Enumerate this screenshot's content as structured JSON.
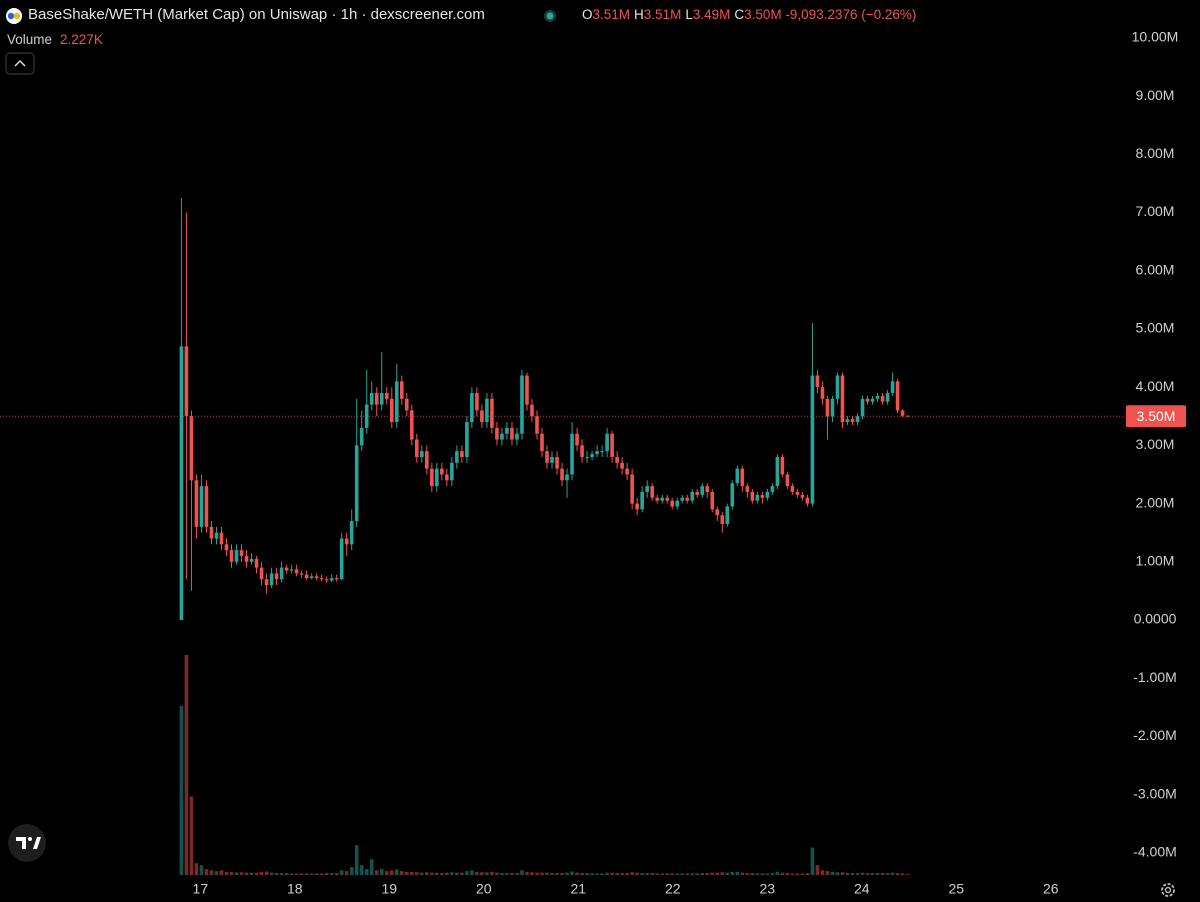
{
  "chart_data": {
    "type": "candlestick",
    "title": "BaseShake/WETH (Market Cap) on Uniswap · 1h · dexscreener.com",
    "ohlc_legend": [
      {
        "key": "O",
        "label": "3.51M"
      },
      {
        "key": "H",
        "label": "3.51M"
      },
      {
        "key": "L",
        "label": "3.49M"
      },
      {
        "key": "C",
        "label": "3.50M"
      }
    ],
    "change": "-9,093.2376 (−0.26%)",
    "up_color": "#26a69a",
    "down_color": "#ef5350",
    "xlim": [
      14.88,
      26.68
    ],
    "xticks": [
      17,
      18,
      19,
      20,
      21,
      22,
      23,
      24,
      25,
      26
    ],
    "ylim": [
      -4.38,
      10.65
    ],
    "yticks": [
      {
        "value": 10,
        "label": "10.00M"
      },
      {
        "value": 9,
        "label": "9.00M"
      },
      {
        "value": 8,
        "label": "8.00M"
      },
      {
        "value": 7,
        "label": "7.00M"
      },
      {
        "value": 6,
        "label": "6.00M"
      },
      {
        "value": 5,
        "label": "5.00M"
      },
      {
        "value": 4,
        "label": "4.00M"
      },
      {
        "value": 3,
        "label": "3.00M"
      },
      {
        "value": 2,
        "label": "2.00M"
      },
      {
        "value": 1,
        "label": "1.00M"
      },
      {
        "value": 0,
        "label": "0.0000"
      },
      {
        "value": -1,
        "label": "-1.00M"
      },
      {
        "value": -2,
        "label": "-2.00M"
      },
      {
        "value": -3,
        "label": "-3.00M"
      },
      {
        "value": -4,
        "label": "-4.00M"
      }
    ],
    "last_price": {
      "value": 3.5,
      "label": "3.50M"
    },
    "x": [
      16.8,
      16.853,
      16.906,
      16.959,
      17.012,
      17.065,
      17.118,
      17.171,
      17.224,
      17.277,
      17.33,
      17.383,
      17.436,
      17.489,
      17.542,
      17.595,
      17.648,
      17.701,
      17.754,
      17.807,
      17.86,
      17.913,
      17.966,
      18.019,
      18.072,
      18.125,
      18.178,
      18.231,
      18.284,
      18.337,
      18.39,
      18.443,
      18.496,
      18.549,
      18.602,
      18.655,
      18.708,
      18.761,
      18.814,
      18.867,
      18.92,
      18.973,
      19.026,
      19.079,
      19.132,
      19.185,
      19.238,
      19.291,
      19.344,
      19.397,
      19.45,
      19.503,
      19.556,
      19.609,
      19.662,
      19.715,
      19.768,
      19.821,
      19.874,
      19.927,
      19.98,
      20.033,
      20.086,
      20.139,
      20.192,
      20.245,
      20.298,
      20.351,
      20.404,
      20.457,
      20.51,
      20.563,
      20.616,
      20.669,
      20.722,
      20.775,
      20.828,
      20.881,
      20.934,
      20.987,
      21.04,
      21.093,
      21.146,
      21.199,
      21.252,
      21.305,
      21.358,
      21.411,
      21.464,
      21.517,
      21.57,
      21.623,
      21.676,
      21.729,
      21.782,
      21.835,
      21.888,
      21.941,
      21.994,
      22.047,
      22.1,
      22.153,
      22.206,
      22.259,
      22.312,
      22.365,
      22.418,
      22.471,
      22.524,
      22.577,
      22.63,
      22.683,
      22.736,
      22.789,
      22.842,
      22.895,
      22.948,
      23.001,
      23.054,
      23.107,
      23.16,
      23.213,
      23.266,
      23.319,
      23.372,
      23.425,
      23.478,
      23.531,
      23.584,
      23.637,
      23.69,
      23.743,
      23.796,
      23.849,
      23.902,
      23.955,
      24.008,
      24.061,
      24.114,
      24.167,
      24.22,
      24.273,
      24.326,
      24.379,
      24.432,
      24.485
    ],
    "open": [
      0,
      4.7,
      3.5,
      2.4,
      1.6,
      2.3,
      1.6,
      1.4,
      1.5,
      1.3,
      1.2,
      1.0,
      1.2,
      1.1,
      1.0,
      1.05,
      0.9,
      0.7,
      0.6,
      0.8,
      0.7,
      0.9,
      0.85,
      0.87,
      0.8,
      0.78,
      0.72,
      0.75,
      0.72,
      0.7,
      0.68,
      0.72,
      0.7,
      1.4,
      1.3,
      1.7,
      3.0,
      3.3,
      3.7,
      3.9,
      3.7,
      3.9,
      3.8,
      3.4,
      4.1,
      3.8,
      3.6,
      3.1,
      2.8,
      2.9,
      2.6,
      2.3,
      2.6,
      2.5,
      2.4,
      2.7,
      2.9,
      2.8,
      3.4,
      3.9,
      3.6,
      3.4,
      3.8,
      3.3,
      3.1,
      3.2,
      3.3,
      3.1,
      3.2,
      4.2,
      3.7,
      3.5,
      3.2,
      2.9,
      2.7,
      2.8,
      2.6,
      2.4,
      2.5,
      3.2,
      3.0,
      2.8,
      2.8,
      2.85,
      2.9,
      2.9,
      3.2,
      2.8,
      2.7,
      2.6,
      2.5,
      2.0,
      1.9,
      2.2,
      2.3,
      2.1,
      2.05,
      2.1,
      2.05,
      1.95,
      2.05,
      2.1,
      2.05,
      2.2,
      2.15,
      2.3,
      2.2,
      1.9,
      1.8,
      1.65,
      1.95,
      2.35,
      2.6,
      2.3,
      2.2,
      2.05,
      2.15,
      2.1,
      2.2,
      2.3,
      2.8,
      2.5,
      2.3,
      2.2,
      2.15,
      2.1,
      2.0,
      4.2,
      4.0,
      3.8,
      3.5,
      3.8,
      4.2,
      3.4,
      3.45,
      3.4,
      3.5,
      3.8,
      3.75,
      3.8,
      3.85,
      3.75,
      3.9,
      4.1,
      3.6,
      3.51
    ],
    "high": [
      7.25,
      7.0,
      3.6,
      2.5,
      2.5,
      2.4,
      1.7,
      1.6,
      1.6,
      1.4,
      1.3,
      1.3,
      1.3,
      1.2,
      1.15,
      1.1,
      1.0,
      0.8,
      0.9,
      0.9,
      1.0,
      0.95,
      0.95,
      0.95,
      0.85,
      0.85,
      0.8,
      0.8,
      0.78,
      0.75,
      0.78,
      0.78,
      1.5,
      1.5,
      1.9,
      3.8,
      3.6,
      4.3,
      4.1,
      4.0,
      4.6,
      4.0,
      4.0,
      4.4,
      4.2,
      3.9,
      3.7,
      3.2,
      3.0,
      3.0,
      2.7,
      2.7,
      2.7,
      2.6,
      2.8,
      3.0,
      3.0,
      3.5,
      4.0,
      4.0,
      3.7,
      3.9,
      3.9,
      3.4,
      3.3,
      3.4,
      3.4,
      3.3,
      4.3,
      4.25,
      3.8,
      3.6,
      3.3,
      3.0,
      2.9,
      2.9,
      2.7,
      2.6,
      3.4,
      3.3,
      3.1,
      2.9,
      2.9,
      3.0,
      3.0,
      3.3,
      3.25,
      2.9,
      2.8,
      2.7,
      2.6,
      2.1,
      2.3,
      2.4,
      2.35,
      2.15,
      2.15,
      2.15,
      2.1,
      2.1,
      2.15,
      2.15,
      2.25,
      2.25,
      2.35,
      2.35,
      2.25,
      1.95,
      1.85,
      2.0,
      2.4,
      2.65,
      2.65,
      2.35,
      2.25,
      2.2,
      2.2,
      2.25,
      2.35,
      2.85,
      2.85,
      2.55,
      2.35,
      2.25,
      2.2,
      2.15,
      5.1,
      4.3,
      4.1,
      3.85,
      3.85,
      4.25,
      4.25,
      3.5,
      3.5,
      3.55,
      3.85,
      3.85,
      3.85,
      3.9,
      3.9,
      3.95,
      4.25,
      4.15,
      3.62,
      3.51
    ],
    "low": [
      0,
      0.7,
      0.5,
      1.4,
      1.5,
      1.5,
      1.3,
      1.3,
      1.2,
      1.1,
      0.9,
      0.95,
      1.0,
      0.9,
      0.95,
      0.8,
      0.6,
      0.45,
      0.55,
      0.6,
      0.65,
      0.8,
      0.8,
      0.75,
      0.72,
      0.68,
      0.7,
      0.68,
      0.66,
      0.64,
      0.65,
      0.66,
      0.68,
      1.1,
      1.2,
      1.6,
      2.9,
      3.2,
      3.6,
      3.5,
      3.6,
      3.7,
      3.3,
      3.3,
      3.7,
      3.5,
      3.0,
      2.7,
      2.7,
      2.5,
      2.2,
      2.2,
      2.4,
      2.3,
      2.3,
      2.6,
      2.7,
      2.7,
      3.3,
      3.5,
      3.3,
      3.3,
      3.2,
      3.0,
      3.0,
      3.1,
      3.0,
      3.0,
      3.1,
      3.6,
      3.4,
      3.1,
      2.8,
      2.6,
      2.6,
      2.5,
      2.3,
      2.1,
      2.4,
      2.9,
      2.7,
      2.7,
      2.75,
      2.8,
      2.8,
      2.8,
      2.7,
      2.6,
      2.5,
      2.4,
      1.9,
      1.8,
      1.85,
      2.1,
      2.05,
      2.0,
      2.0,
      2.0,
      1.9,
      1.9,
      2.0,
      2.0,
      2.0,
      2.1,
      2.1,
      2.1,
      1.85,
      1.7,
      1.5,
      1.6,
      1.9,
      2.3,
      2.2,
      2.1,
      2.0,
      2.0,
      2.0,
      2.05,
      2.15,
      2.25,
      2.45,
      2.25,
      2.15,
      2.1,
      2.05,
      1.95,
      1.95,
      3.9,
      3.7,
      3.1,
      3.4,
      3.7,
      3.3,
      3.35,
      3.35,
      3.35,
      3.45,
      3.7,
      3.7,
      3.75,
      3.7,
      3.7,
      3.85,
      3.55,
      3.49,
      3.49
    ],
    "close": [
      4.7,
      3.5,
      2.4,
      1.6,
      2.3,
      1.6,
      1.4,
      1.5,
      1.3,
      1.2,
      1.0,
      1.2,
      1.1,
      1.0,
      1.05,
      0.9,
      0.7,
      0.6,
      0.8,
      0.7,
      0.9,
      0.85,
      0.87,
      0.8,
      0.78,
      0.72,
      0.75,
      0.72,
      0.7,
      0.68,
      0.72,
      0.7,
      1.4,
      1.3,
      1.7,
      3.0,
      3.3,
      3.7,
      3.9,
      3.7,
      3.9,
      3.8,
      3.4,
      4.1,
      3.8,
      3.6,
      3.1,
      2.8,
      2.9,
      2.6,
      2.3,
      2.6,
      2.5,
      2.4,
      2.7,
      2.9,
      2.8,
      3.4,
      3.9,
      3.6,
      3.4,
      3.8,
      3.3,
      3.1,
      3.2,
      3.3,
      3.1,
      3.2,
      4.2,
      3.7,
      3.5,
      3.2,
      2.9,
      2.7,
      2.8,
      2.6,
      2.4,
      2.5,
      3.2,
      3.0,
      2.8,
      2.8,
      2.85,
      2.9,
      2.9,
      3.2,
      2.8,
      2.7,
      2.6,
      2.5,
      2.0,
      1.9,
      2.2,
      2.3,
      2.1,
      2.05,
      2.1,
      2.05,
      1.95,
      2.05,
      2.1,
      2.05,
      2.2,
      2.15,
      2.3,
      2.2,
      1.9,
      1.8,
      1.65,
      1.95,
      2.35,
      2.6,
      2.3,
      2.2,
      2.05,
      2.15,
      2.1,
      2.2,
      2.3,
      2.8,
      2.5,
      2.3,
      2.2,
      2.15,
      2.1,
      2.0,
      4.2,
      4.0,
      3.8,
      3.5,
      3.8,
      4.2,
      3.4,
      3.45,
      3.4,
      3.5,
      3.8,
      3.75,
      3.8,
      3.85,
      3.75,
      3.9,
      4.1,
      3.6,
      3.51,
      3.5
    ],
    "volume": {
      "name": "Volume",
      "ylim": [
        0,
        560
      ],
      "last_value_label": "2.227K",
      "values": [
        430,
        560,
        200,
        30,
        25,
        15,
        12,
        10,
        12,
        8,
        8,
        7,
        7,
        6,
        6,
        6,
        8,
        9,
        6,
        5,
        5,
        5,
        4,
        4,
        4,
        4,
        4,
        4,
        4,
        5,
        5,
        5,
        12,
        10,
        20,
        76,
        25,
        15,
        40,
        12,
        15,
        10,
        12,
        14,
        10,
        8,
        8,
        7,
        6,
        7,
        6,
        6,
        5,
        6,
        7,
        6,
        6,
        10,
        12,
        8,
        7,
        7,
        8,
        6,
        5,
        5,
        5,
        5,
        12,
        8,
        7,
        6,
        6,
        6,
        5,
        5,
        5,
        6,
        9,
        6,
        5,
        5,
        4,
        4,
        4,
        6,
        6,
        5,
        5,
        5,
        7,
        6,
        5,
        5,
        5,
        4,
        4,
        4,
        4,
        4,
        4,
        4,
        4,
        4,
        5,
        5,
        6,
        6,
        7,
        6,
        8,
        8,
        6,
        5,
        5,
        4,
        4,
        4,
        5,
        8,
        6,
        5,
        4,
        4,
        4,
        5,
        70,
        25,
        12,
        10,
        8,
        7,
        7,
        5,
        5,
        5,
        6,
        5,
        5,
        5,
        5,
        5,
        6,
        5,
        4,
        2.227
      ]
    }
  }
}
